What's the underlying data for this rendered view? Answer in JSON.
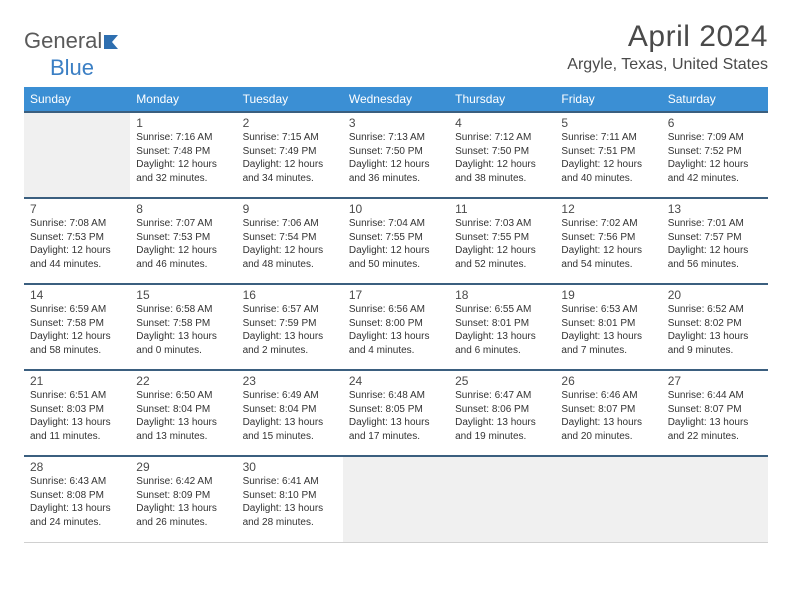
{
  "logo": {
    "word1": "General",
    "word2": "Blue"
  },
  "title": "April 2024",
  "location": "Argyle, Texas, United States",
  "colors": {
    "header_bg": "#3b8fd4",
    "header_text": "#ffffff",
    "row_top_border": "#3b5f7f",
    "empty_bg": "#f0f0f0",
    "text": "#333333",
    "title_text": "#4a4a4a"
  },
  "dow": [
    "Sunday",
    "Monday",
    "Tuesday",
    "Wednesday",
    "Thursday",
    "Friday",
    "Saturday"
  ],
  "weeks": [
    [
      null,
      {
        "n": "1",
        "sr": "7:16 AM",
        "ss": "7:48 PM",
        "dl": "12 hours and 32 minutes."
      },
      {
        "n": "2",
        "sr": "7:15 AM",
        "ss": "7:49 PM",
        "dl": "12 hours and 34 minutes."
      },
      {
        "n": "3",
        "sr": "7:13 AM",
        "ss": "7:50 PM",
        "dl": "12 hours and 36 minutes."
      },
      {
        "n": "4",
        "sr": "7:12 AM",
        "ss": "7:50 PM",
        "dl": "12 hours and 38 minutes."
      },
      {
        "n": "5",
        "sr": "7:11 AM",
        "ss": "7:51 PM",
        "dl": "12 hours and 40 minutes."
      },
      {
        "n": "6",
        "sr": "7:09 AM",
        "ss": "7:52 PM",
        "dl": "12 hours and 42 minutes."
      }
    ],
    [
      {
        "n": "7",
        "sr": "7:08 AM",
        "ss": "7:53 PM",
        "dl": "12 hours and 44 minutes."
      },
      {
        "n": "8",
        "sr": "7:07 AM",
        "ss": "7:53 PM",
        "dl": "12 hours and 46 minutes."
      },
      {
        "n": "9",
        "sr": "7:06 AM",
        "ss": "7:54 PM",
        "dl": "12 hours and 48 minutes."
      },
      {
        "n": "10",
        "sr": "7:04 AM",
        "ss": "7:55 PM",
        "dl": "12 hours and 50 minutes."
      },
      {
        "n": "11",
        "sr": "7:03 AM",
        "ss": "7:55 PM",
        "dl": "12 hours and 52 minutes."
      },
      {
        "n": "12",
        "sr": "7:02 AM",
        "ss": "7:56 PM",
        "dl": "12 hours and 54 minutes."
      },
      {
        "n": "13",
        "sr": "7:01 AM",
        "ss": "7:57 PM",
        "dl": "12 hours and 56 minutes."
      }
    ],
    [
      {
        "n": "14",
        "sr": "6:59 AM",
        "ss": "7:58 PM",
        "dl": "12 hours and 58 minutes."
      },
      {
        "n": "15",
        "sr": "6:58 AM",
        "ss": "7:58 PM",
        "dl": "13 hours and 0 minutes."
      },
      {
        "n": "16",
        "sr": "6:57 AM",
        "ss": "7:59 PM",
        "dl": "13 hours and 2 minutes."
      },
      {
        "n": "17",
        "sr": "6:56 AM",
        "ss": "8:00 PM",
        "dl": "13 hours and 4 minutes."
      },
      {
        "n": "18",
        "sr": "6:55 AM",
        "ss": "8:01 PM",
        "dl": "13 hours and 6 minutes."
      },
      {
        "n": "19",
        "sr": "6:53 AM",
        "ss": "8:01 PM",
        "dl": "13 hours and 7 minutes."
      },
      {
        "n": "20",
        "sr": "6:52 AM",
        "ss": "8:02 PM",
        "dl": "13 hours and 9 minutes."
      }
    ],
    [
      {
        "n": "21",
        "sr": "6:51 AM",
        "ss": "8:03 PM",
        "dl": "13 hours and 11 minutes."
      },
      {
        "n": "22",
        "sr": "6:50 AM",
        "ss": "8:04 PM",
        "dl": "13 hours and 13 minutes."
      },
      {
        "n": "23",
        "sr": "6:49 AM",
        "ss": "8:04 PM",
        "dl": "13 hours and 15 minutes."
      },
      {
        "n": "24",
        "sr": "6:48 AM",
        "ss": "8:05 PM",
        "dl": "13 hours and 17 minutes."
      },
      {
        "n": "25",
        "sr": "6:47 AM",
        "ss": "8:06 PM",
        "dl": "13 hours and 19 minutes."
      },
      {
        "n": "26",
        "sr": "6:46 AM",
        "ss": "8:07 PM",
        "dl": "13 hours and 20 minutes."
      },
      {
        "n": "27",
        "sr": "6:44 AM",
        "ss": "8:07 PM",
        "dl": "13 hours and 22 minutes."
      }
    ],
    [
      {
        "n": "28",
        "sr": "6:43 AM",
        "ss": "8:08 PM",
        "dl": "13 hours and 24 minutes."
      },
      {
        "n": "29",
        "sr": "6:42 AM",
        "ss": "8:09 PM",
        "dl": "13 hours and 26 minutes."
      },
      {
        "n": "30",
        "sr": "6:41 AM",
        "ss": "8:10 PM",
        "dl": "13 hours and 28 minutes."
      },
      null,
      null,
      null,
      null
    ]
  ],
  "labels": {
    "sunrise": "Sunrise:",
    "sunset": "Sunset:",
    "daylight": "Daylight:"
  }
}
